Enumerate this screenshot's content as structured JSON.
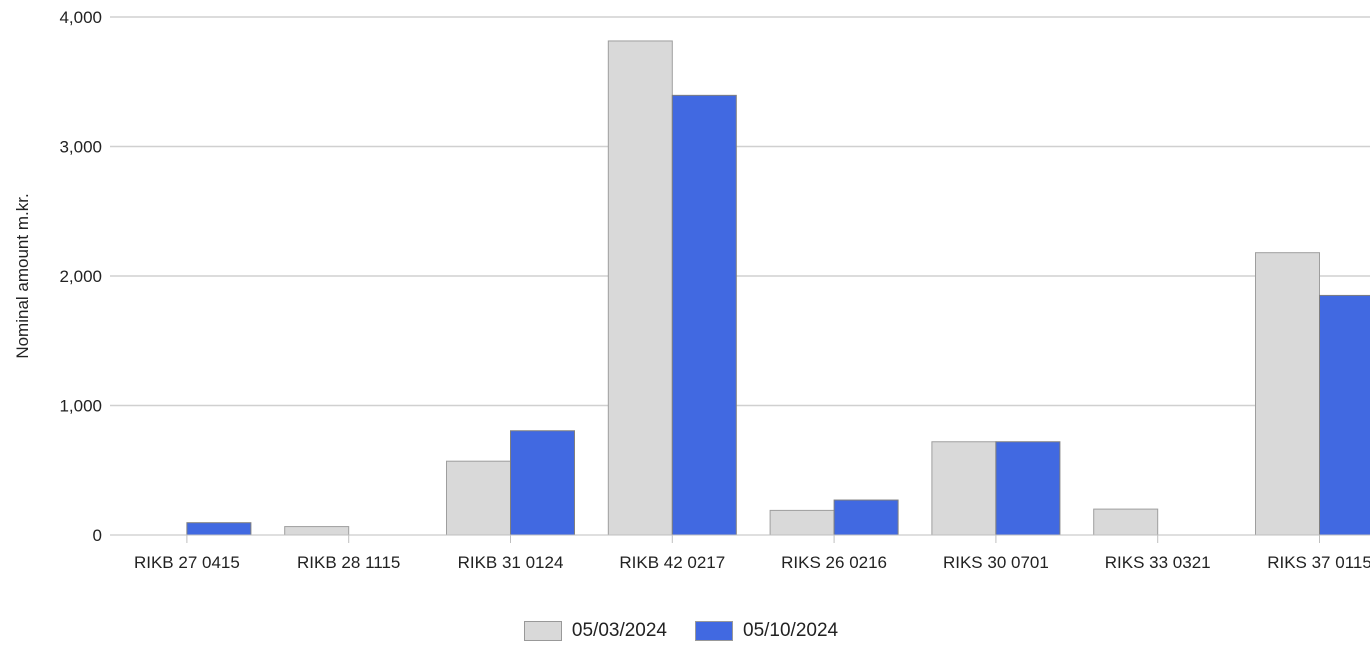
{
  "chart_data": {
    "type": "bar",
    "ylabel": "Nominal amount m.kr.",
    "ylim": [
      0,
      4000
    ],
    "yticks": [
      0,
      1000,
      2000,
      3000,
      4000
    ],
    "ytick_labels": [
      "0",
      "1,000",
      "2,000",
      "3,000",
      "4,000"
    ],
    "grid": true,
    "legend_position": "bottom",
    "categories": [
      "RIKB 27 0415",
      "RIKB 28 1115",
      "RIKB 31 0124",
      "RIKB 42 0217",
      "RIKS 26 0216",
      "RIKS 30 0701",
      "RIKS 33 0321",
      "RIKS 37 0115"
    ],
    "series": [
      {
        "name": "05/03/2024",
        "color": "#d9d9d9",
        "values": [
          0,
          65,
          570,
          3815,
          190,
          720,
          200,
          2180
        ]
      },
      {
        "name": "05/10/2024",
        "color": "#4169e1",
        "values": [
          95,
          0,
          805,
          3395,
          270,
          720,
          0,
          1850
        ]
      }
    ]
  }
}
